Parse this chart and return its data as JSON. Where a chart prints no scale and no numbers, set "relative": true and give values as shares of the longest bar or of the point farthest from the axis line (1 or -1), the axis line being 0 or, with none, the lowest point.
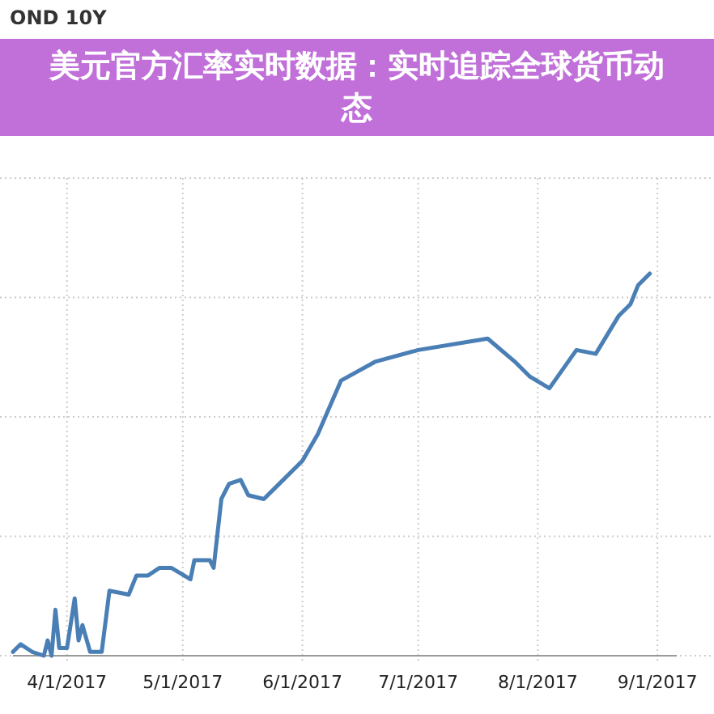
{
  "chart_data": {
    "type": "line",
    "title": "OND 10Y",
    "subtitle": "美元官方汇率实时数据：实时追踪全球货币动态",
    "relative": true,
    "grid": true,
    "xlim": [
      "2017-03-18",
      "2017-09-06"
    ],
    "xticks": [
      {
        "value": "2017-04-01",
        "label": "4/1/2017"
      },
      {
        "value": "2017-05-01",
        "label": "5/1/2017"
      },
      {
        "value": "2017-06-01",
        "label": "6/1/2017"
      },
      {
        "value": "2017-07-01",
        "label": "7/1/2017"
      },
      {
        "value": "2017-08-01",
        "label": "8/1/2017"
      },
      {
        "value": "2017-09-01",
        "label": "9/1/2017"
      }
    ],
    "x": [
      "2017-03-18",
      "2017-03-20",
      "2017-03-23",
      "2017-03-26",
      "2017-03-27",
      "2017-03-28",
      "2017-03-29",
      "2017-03-30",
      "2017-04-01",
      "2017-04-03",
      "2017-04-04",
      "2017-04-05",
      "2017-04-07",
      "2017-04-10",
      "2017-04-12",
      "2017-04-17",
      "2017-04-19",
      "2017-04-22",
      "2017-04-25",
      "2017-04-28",
      "2017-05-03",
      "2017-05-04",
      "2017-05-08",
      "2017-05-09",
      "2017-05-10",
      "2017-05-11",
      "2017-05-13",
      "2017-05-16",
      "2017-05-18",
      "2017-05-22",
      "2017-05-26",
      "2017-06-01",
      "2017-06-05",
      "2017-06-11",
      "2017-06-20",
      "2017-07-01",
      "2017-07-19",
      "2017-07-26",
      "2017-07-30",
      "2017-08-04",
      "2017-08-11",
      "2017-08-16",
      "2017-08-22",
      "2017-08-25",
      "2017-08-27",
      "2017-08-30"
    ],
    "series": [
      {
        "color": "#4a7fb5",
        "values": [
          0.01,
          0.03,
          0.01,
          0,
          0.04,
          0,
          0.12,
          0.02,
          0.02,
          0.15,
          0.04,
          0.08,
          0.01,
          0.01,
          0.17,
          0.16,
          0.21,
          0.21,
          0.23,
          0.23,
          0.2,
          0.25,
          0.25,
          0.23,
          0.32,
          0.41,
          0.45,
          0.46,
          0.42,
          0.41,
          0.45,
          0.51,
          0.58,
          0.72,
          0.77,
          0.8,
          0.83,
          0.77,
          0.73,
          0.7,
          0.8,
          0.79,
          0.89,
          0.92,
          0.97,
          1
        ]
      }
    ]
  }
}
